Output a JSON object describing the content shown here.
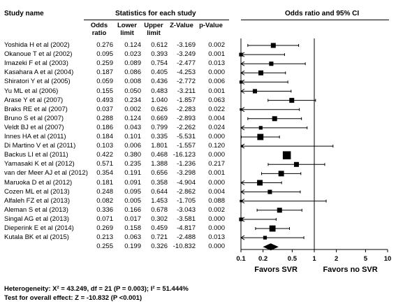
{
  "headers": {
    "study_name": "Study name",
    "stats_group": "Statistics for each study",
    "plot_title": "Odds ratio and 95% CI",
    "cols": [
      "Odds\nratio",
      "Lower\nlimit",
      "Upper\nlimit",
      "Z-Value",
      "p-Value"
    ]
  },
  "favors": {
    "left": "Favors SVR",
    "right": "Favors no SVR"
  },
  "footer": {
    "heterogeneity": "Heterogeneity: X² = 43.249, df = 21 (P = 0.003); I² = 51.444%",
    "overall": "Test for overall effect: Z = -10.832 (P <0.001)"
  },
  "chart_data": {
    "type": "forest",
    "x_scale": "log",
    "xlim": [
      0.1,
      10
    ],
    "ticks": [
      0.1,
      0.2,
      0.5,
      1,
      2,
      5,
      10
    ],
    "tick_labels": [
      "0.1",
      "0.2",
      "0.5",
      "1",
      "2",
      "5",
      "10"
    ],
    "studies": [
      {
        "name": "Yoshida H et al (2002)",
        "or": 0.276,
        "lower": 0.124,
        "upper": 0.612,
        "z": "-3.169",
        "p": "0.002",
        "or_s": "0.276",
        "lo_s": "0.124",
        "up_s": "0.612",
        "weight": 5
      },
      {
        "name": "Okanoue T et al (2002)",
        "or": 0.095,
        "lower": 0.023,
        "upper": 0.393,
        "z": "-3.249",
        "p": "0.001",
        "or_s": "0.095",
        "lo_s": "0.023",
        "up_s": "0.393",
        "weight": 3
      },
      {
        "name": "Imazeki F et al (2003)",
        "or": 0.259,
        "lower": 0.089,
        "upper": 0.754,
        "z": "-2.477",
        "p": "0.013",
        "or_s": "0.259",
        "lo_s": "0.089",
        "up_s": "0.754",
        "weight": 4
      },
      {
        "name": "Kasahara A et al (2004)",
        "or": 0.187,
        "lower": 0.086,
        "upper": 0.405,
        "z": "-4.253",
        "p": "0.000",
        "or_s": "0.187",
        "lo_s": "0.086",
        "up_s": "0.405",
        "weight": 5
      },
      {
        "name": "Shiratori Y et al (2005)",
        "or": 0.059,
        "lower": 0.008,
        "upper": 0.436,
        "z": "-2.772",
        "p": "0.006",
        "or_s": "0.059",
        "lo_s": "0.008",
        "up_s": "0.436",
        "weight": 2
      },
      {
        "name": "Yu ML et al (2006)",
        "or": 0.155,
        "lower": 0.05,
        "upper": 0.483,
        "z": "-3.211",
        "p": "0.001",
        "or_s": "0.155",
        "lo_s": "0.050",
        "up_s": "0.483",
        "weight": 4
      },
      {
        "name": "Arase Y et al (2007)",
        "or": 0.493,
        "lower": 0.234,
        "upper": 1.04,
        "z": "-1.857",
        "p": "0.063",
        "or_s": "0.493",
        "lo_s": "0.234",
        "up_s": "1.040",
        "weight": 5
      },
      {
        "name": "Braks RE et al (2007)",
        "or": 0.037,
        "lower": 0.002,
        "upper": 0.626,
        "z": "-2.283",
        "p": "0.022",
        "or_s": "0.037",
        "lo_s": "0.002",
        "up_s": "0.626",
        "weight": 1
      },
      {
        "name": "Bruno S et al (2007)",
        "or": 0.288,
        "lower": 0.124,
        "upper": 0.669,
        "z": "-2.893",
        "p": "0.004",
        "or_s": "0.288",
        "lo_s": "0.124",
        "up_s": "0.669",
        "weight": 5
      },
      {
        "name": "Veldt BJ et al (2007)",
        "or": 0.186,
        "lower": 0.043,
        "upper": 0.799,
        "z": "-2.262",
        "p": "0.024",
        "or_s": "0.186",
        "lo_s": "0.043",
        "up_s": "0.799",
        "weight": 3
      },
      {
        "name": "Innes HA et al (2011)",
        "or": 0.184,
        "lower": 0.101,
        "upper": 0.335,
        "z": "-5.531",
        "p": "0.000",
        "or_s": "0.184",
        "lo_s": "0.101",
        "up_s": "0.335",
        "weight": 7
      },
      {
        "name": "Di Martino V et al (2011)",
        "or": 0.103,
        "lower": 0.006,
        "upper": 1.801,
        "z": "-1.557",
        "p": "0.120",
        "or_s": "0.103",
        "lo_s": "0.006",
        "up_s": "1.801",
        "weight": 1
      },
      {
        "name": "Backus LI et al (2011)",
        "or": 0.422,
        "lower": 0.38,
        "upper": 0.468,
        "z": "-16.123",
        "p": "0.000",
        "or_s": "0.422",
        "lo_s": "0.380",
        "up_s": "0.468",
        "weight": 10
      },
      {
        "name": "Yamasaki K et al (2012)",
        "or": 0.571,
        "lower": 0.235,
        "upper": 1.388,
        "z": "-1.236",
        "p": "0.217",
        "or_s": "0.571",
        "lo_s": "0.235",
        "up_s": "1.388",
        "weight": 5
      },
      {
        "name": "van der Meer AJ et al (2012)",
        "or": 0.354,
        "lower": 0.191,
        "upper": 0.656,
        "z": "-3.298",
        "p": "0.001",
        "or_s": "0.354",
        "lo_s": "0.191",
        "up_s": "0.656",
        "weight": 6
      },
      {
        "name": "Maruoka D et al (2012)",
        "or": 0.181,
        "lower": 0.091,
        "upper": 0.358,
        "z": "-4.904",
        "p": "0.000",
        "or_s": "0.181",
        "lo_s": "0.091",
        "up_s": "0.358",
        "weight": 6
      },
      {
        "name": "Cozen ML et al (2013)",
        "or": 0.248,
        "lower": 0.095,
        "upper": 0.644,
        "z": "-2.862",
        "p": "0.004",
        "or_s": "0.248",
        "lo_s": "0.095",
        "up_s": "0.644",
        "weight": 4
      },
      {
        "name": "Alfaleh FZ et al (2013)",
        "or": 0.082,
        "lower": 0.005,
        "upper": 1.453,
        "z": "-1.705",
        "p": "0.088",
        "or_s": "0.082",
        "lo_s": "0.005",
        "up_s": "1.453",
        "weight": 1
      },
      {
        "name": "Aleman S et al (2013)",
        "or": 0.336,
        "lower": 0.166,
        "upper": 0.678,
        "z": "-3.043",
        "p": "0.002",
        "or_s": "0.336",
        "lo_s": "0.166",
        "up_s": "0.678",
        "weight": 5
      },
      {
        "name": "Singal AG et al (2013)",
        "or": 0.071,
        "lower": 0.017,
        "upper": 0.302,
        "z": "-3.581",
        "p": "0.000",
        "or_s": "0.071",
        "lo_s": "0.017",
        "up_s": "0.302",
        "weight": 3
      },
      {
        "name": "Dieperink E et al (2014)",
        "or": 0.269,
        "lower": 0.158,
        "upper": 0.459,
        "z": "-4.817",
        "p": "0.000",
        "or_s": "0.269",
        "lo_s": "0.158",
        "up_s": "0.459",
        "weight": 7
      },
      {
        "name": "Kutala BK et al (2015)",
        "or": 0.213,
        "lower": 0.063,
        "upper": 0.721,
        "z": "-2.488",
        "p": "0.013",
        "or_s": "0.213",
        "lo_s": "0.063",
        "up_s": "0.721",
        "weight": 3
      }
    ],
    "pooled": {
      "or": 0.255,
      "lower": 0.199,
      "upper": 0.326,
      "z": "-10.832",
      "p": "0.000",
      "or_s": "0.255",
      "lo_s": "0.199",
      "up_s": "0.326"
    }
  }
}
